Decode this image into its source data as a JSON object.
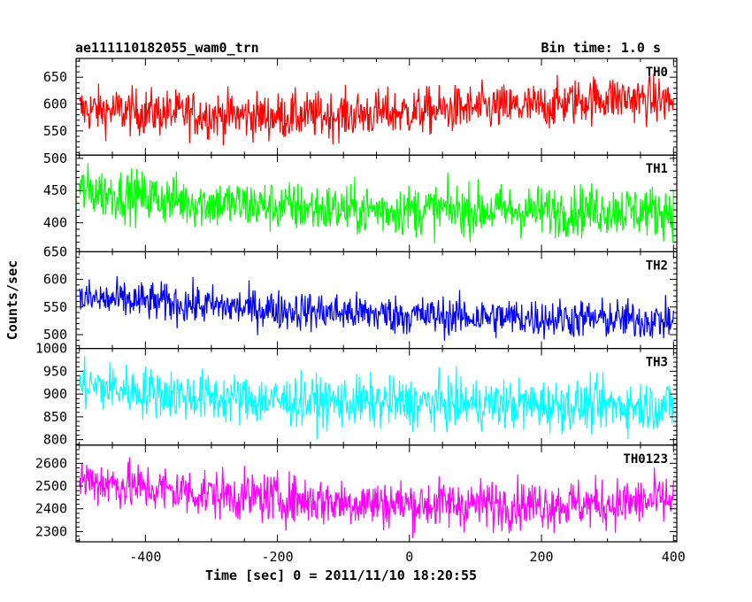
{
  "header": {
    "title": "ae111110182055_wam0_trn",
    "bin_time": "Bin time: 1.0 s"
  },
  "chart_data": {
    "type": "line",
    "xlabel": "Time [sec] 0 = 2011/11/10 18:20:55",
    "ylabel": "Counts/sec",
    "xlim": [
      -505,
      405
    ],
    "x_ticks": [
      -400,
      -200,
      0,
      200,
      400
    ],
    "x_start": -500,
    "x_end": 400,
    "x_step": 1,
    "grid": false,
    "panels": [
      {
        "name": "TH0",
        "color": "#ff0000",
        "ylim": [
          505,
          685
        ],
        "y_ticks": [
          550,
          600,
          650
        ],
        "trend": [
          [
            -500,
            590
          ],
          [
            -400,
            585
          ],
          [
            -300,
            580
          ],
          [
            -200,
            577
          ],
          [
            -100,
            580
          ],
          [
            0,
            585
          ],
          [
            100,
            592
          ],
          [
            200,
            595
          ],
          [
            250,
            605
          ],
          [
            300,
            612
          ],
          [
            400,
            605
          ]
        ],
        "noise": 22
      },
      {
        "name": "TH1",
        "color": "#00ff00",
        "ylim": [
          355,
          505
        ],
        "y_ticks": [
          400,
          450,
          500
        ],
        "trend": [
          [
            -500,
            450
          ],
          [
            -400,
            440
          ],
          [
            -300,
            430
          ],
          [
            -200,
            425
          ],
          [
            -100,
            420
          ],
          [
            0,
            420
          ],
          [
            100,
            420
          ],
          [
            200,
            418
          ],
          [
            300,
            420
          ],
          [
            400,
            418
          ]
        ],
        "noise": 20
      },
      {
        "name": "TH2",
        "color": "#0000ff",
        "ylim": [
          475,
          650
        ],
        "y_ticks": [
          500,
          550,
          600,
          650
        ],
        "trend": [
          [
            -500,
            565
          ],
          [
            -400,
            560
          ],
          [
            -300,
            552
          ],
          [
            -200,
            545
          ],
          [
            -100,
            540
          ],
          [
            0,
            535
          ],
          [
            100,
            532
          ],
          [
            200,
            530
          ],
          [
            300,
            528
          ],
          [
            400,
            525
          ]
        ],
        "noise": 18
      },
      {
        "name": "TH3",
        "color": "#00ffff",
        "ylim": [
          788,
          1000
        ],
        "y_ticks": [
          800,
          850,
          900,
          950,
          1000
        ],
        "trend": [
          [
            -500,
            920
          ],
          [
            -400,
            905
          ],
          [
            -300,
            892
          ],
          [
            -200,
            885
          ],
          [
            -100,
            882
          ],
          [
            0,
            880
          ],
          [
            100,
            878
          ],
          [
            200,
            876
          ],
          [
            300,
            875
          ],
          [
            400,
            875
          ]
        ],
        "noise": 28
      },
      {
        "name": "TH0123",
        "color": "#ff00ff",
        "ylim": [
          2255,
          2680
        ],
        "y_ticks": [
          2300,
          2400,
          2500,
          2600
        ],
        "trend": [
          [
            -500,
            2530
          ],
          [
            -400,
            2490
          ],
          [
            -300,
            2465
          ],
          [
            -200,
            2445
          ],
          [
            -100,
            2430
          ],
          [
            0,
            2420
          ],
          [
            100,
            2420
          ],
          [
            200,
            2420
          ],
          [
            300,
            2420
          ],
          [
            400,
            2440
          ]
        ],
        "noise": 55
      }
    ]
  }
}
